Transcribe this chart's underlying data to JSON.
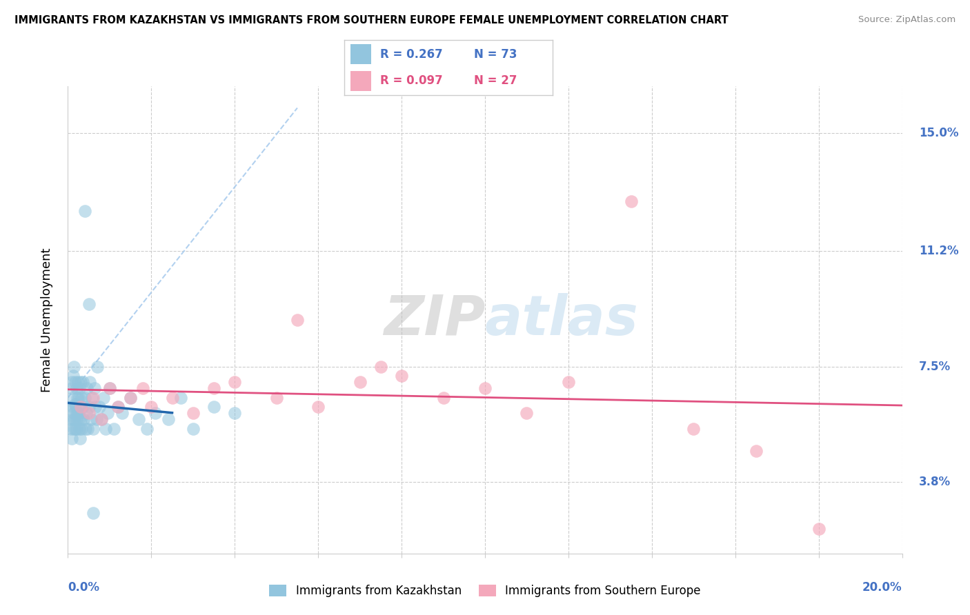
{
  "title": "IMMIGRANTS FROM KAZAKHSTAN VS IMMIGRANTS FROM SOUTHERN EUROPE FEMALE UNEMPLOYMENT CORRELATION CHART",
  "source": "Source: ZipAtlas.com",
  "ylabel": "Female Unemployment",
  "ytick_values": [
    3.8,
    7.5,
    11.2,
    15.0
  ],
  "xlim": [
    0.0,
    20.0
  ],
  "ylim": [
    1.5,
    16.5
  ],
  "color_kaz": "#92c5de",
  "color_se": "#f4a8bb",
  "color_kaz_line": "#2166ac",
  "color_se_line": "#e05080",
  "color_axis_label": "#4472c4",
  "color_title": "#000000",
  "color_source": "#888888",
  "watermark_color": "#c8dff0",
  "watermark_text": "ZIPatlas",
  "legend_r1": "R = 0.267",
  "legend_n1": "N = 73",
  "legend_r2": "R = 0.097",
  "legend_n2": "N = 27",
  "n_kaz": 73,
  "n_se": 27,
  "kaz_x": [
    0.05,
    0.07,
    0.08,
    0.09,
    0.1,
    0.1,
    0.11,
    0.12,
    0.13,
    0.13,
    0.14,
    0.15,
    0.15,
    0.16,
    0.17,
    0.18,
    0.18,
    0.19,
    0.2,
    0.2,
    0.21,
    0.22,
    0.23,
    0.24,
    0.25,
    0.25,
    0.26,
    0.27,
    0.28,
    0.29,
    0.3,
    0.3,
    0.31,
    0.32,
    0.33,
    0.35,
    0.36,
    0.38,
    0.4,
    0.42,
    0.44,
    0.45,
    0.48,
    0.5,
    0.52,
    0.55,
    0.58,
    0.6,
    0.63,
    0.65,
    0.68,
    0.7,
    0.75,
    0.8,
    0.85,
    0.9,
    0.95,
    1.0,
    1.1,
    1.2,
    1.3,
    1.5,
    1.7,
    1.9,
    2.1,
    2.4,
    2.7,
    3.0,
    3.5,
    4.0,
    0.4,
    0.5,
    0.6
  ],
  "kaz_y": [
    5.8,
    6.2,
    5.5,
    6.8,
    5.2,
    7.0,
    6.5,
    5.8,
    6.2,
    7.2,
    5.5,
    6.0,
    7.5,
    5.8,
    6.3,
    5.5,
    7.0,
    6.2,
    5.8,
    6.8,
    5.5,
    6.5,
    6.0,
    7.0,
    5.8,
    6.5,
    6.0,
    5.5,
    6.8,
    5.2,
    6.2,
    7.0,
    5.8,
    6.5,
    5.5,
    6.2,
    7.0,
    5.8,
    6.5,
    5.5,
    6.0,
    6.8,
    5.5,
    6.2,
    7.0,
    5.8,
    6.5,
    5.5,
    6.8,
    6.2,
    5.8,
    7.5,
    6.2,
    5.8,
    6.5,
    5.5,
    6.0,
    6.8,
    5.5,
    6.2,
    6.0,
    6.5,
    5.8,
    5.5,
    6.0,
    5.8,
    6.5,
    5.5,
    6.2,
    6.0,
    12.5,
    9.5,
    2.8
  ],
  "se_x": [
    0.3,
    0.5,
    0.6,
    0.8,
    1.0,
    1.2,
    1.5,
    1.8,
    2.0,
    2.5,
    3.0,
    3.5,
    4.0,
    5.0,
    5.5,
    6.0,
    7.0,
    7.5,
    8.0,
    9.0,
    10.0,
    11.0,
    12.0,
    13.5,
    15.0,
    16.5,
    18.0
  ],
  "se_y": [
    6.2,
    6.0,
    6.5,
    5.8,
    6.8,
    6.2,
    6.5,
    6.8,
    6.2,
    6.5,
    6.0,
    6.8,
    7.0,
    6.5,
    9.0,
    6.2,
    7.0,
    7.5,
    7.2,
    6.5,
    6.8,
    6.0,
    7.0,
    12.8,
    5.5,
    4.8,
    2.3
  ]
}
